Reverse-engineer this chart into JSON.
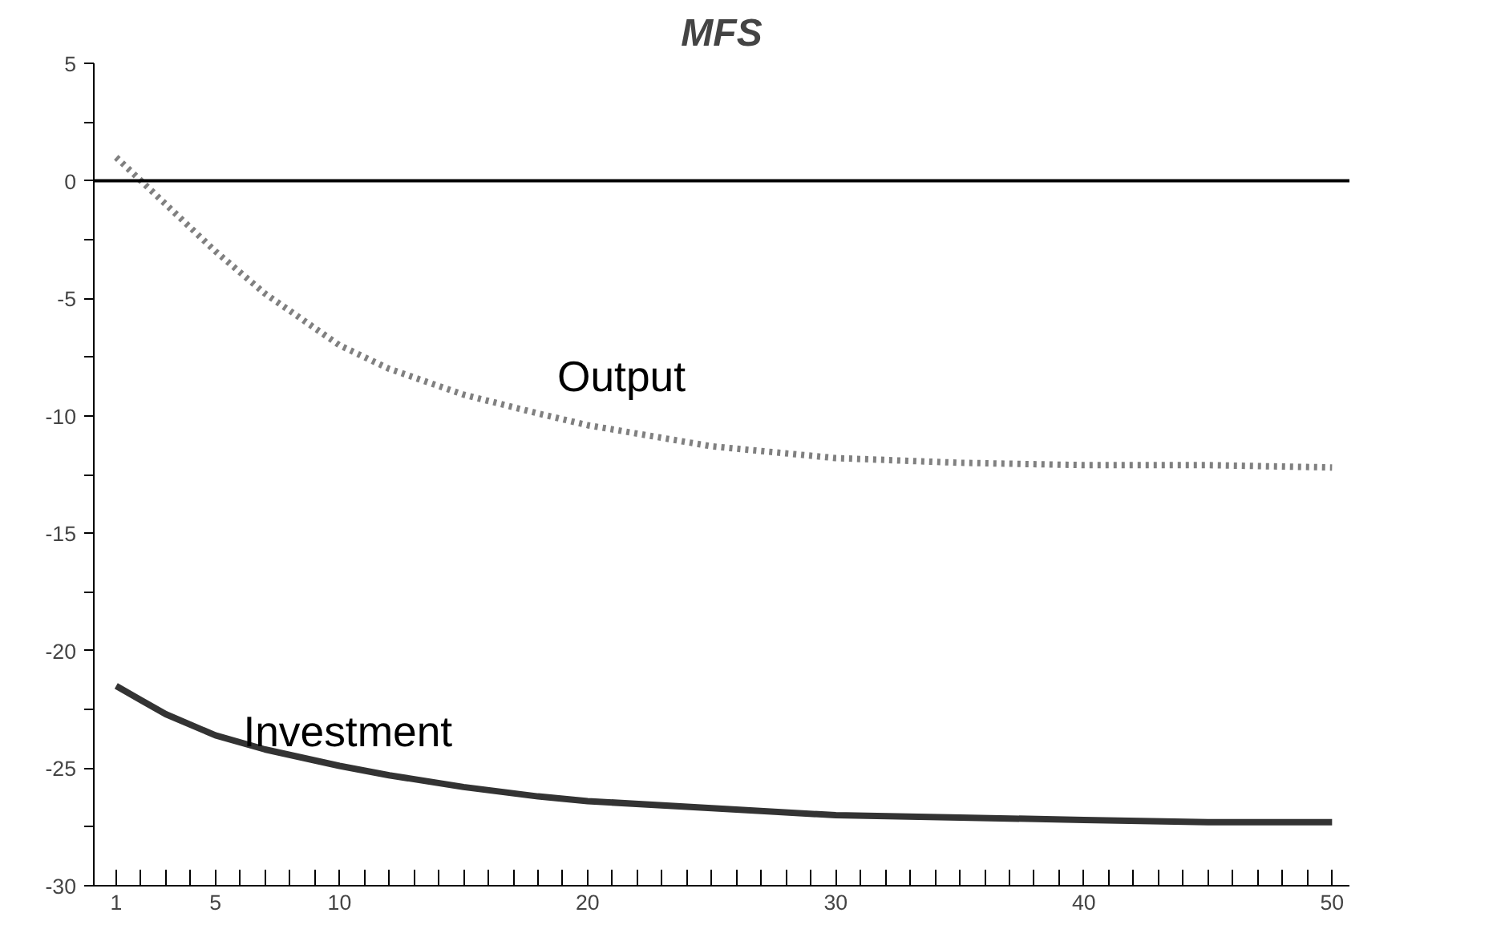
{
  "chart_data": {
    "type": "line",
    "title": "MFS",
    "xlim": [
      0.1,
      50.7
    ],
    "ylim": [
      -30,
      5
    ],
    "xticks": [
      1,
      {
        "value": 2,
        "label": null
      },
      {
        "value": 3,
        "label": null
      },
      {
        "value": 4,
        "label": null
      },
      5,
      {
        "value": 6,
        "label": null
      },
      {
        "value": 7,
        "label": null
      },
      {
        "value": 8,
        "label": null
      },
      {
        "value": 9,
        "label": null
      },
      10,
      {
        "value": 11,
        "label": null
      },
      {
        "value": 12,
        "label": null
      },
      {
        "value": 13,
        "label": null
      },
      {
        "value": 14,
        "label": null
      },
      {
        "value": 15,
        "label": null
      },
      {
        "value": 16,
        "label": null
      },
      {
        "value": 17,
        "label": null
      },
      {
        "value": 18,
        "label": null
      },
      {
        "value": 19,
        "label": null
      },
      20,
      {
        "value": 21,
        "label": null
      },
      {
        "value": 22,
        "label": null
      },
      {
        "value": 23,
        "label": null
      },
      {
        "value": 24,
        "label": null
      },
      {
        "value": 25,
        "label": null
      },
      {
        "value": 26,
        "label": null
      },
      {
        "value": 27,
        "label": null
      },
      {
        "value": 28,
        "label": null
      },
      {
        "value": 29,
        "label": null
      },
      30,
      {
        "value": 31,
        "label": null
      },
      {
        "value": 32,
        "label": null
      },
      {
        "value": 33,
        "label": null
      },
      {
        "value": 34,
        "label": null
      },
      {
        "value": 35,
        "label": null
      },
      {
        "value": 36,
        "label": null
      },
      {
        "value": 37,
        "label": null
      },
      {
        "value": 38,
        "label": null
      },
      {
        "value": 39,
        "label": null
      },
      40,
      {
        "value": 41,
        "label": null
      },
      {
        "value": 42,
        "label": null
      },
      {
        "value": 43,
        "label": null
      },
      {
        "value": 44,
        "label": null
      },
      {
        "value": 45,
        "label": null
      },
      {
        "value": 46,
        "label": null
      },
      {
        "value": 47,
        "label": null
      },
      {
        "value": 48,
        "label": null
      },
      {
        "value": 49,
        "label": null
      },
      50
    ],
    "yticks": [
      -30,
      {
        "value": -27.5,
        "label": null
      },
      -25,
      {
        "value": -22.5,
        "label": null
      },
      -20,
      {
        "value": -17.5,
        "label": null
      },
      -15,
      {
        "value": -12.5,
        "label": null
      },
      -10,
      {
        "value": -7.5,
        "label": null
      },
      -5,
      {
        "value": -2.5,
        "label": null
      },
      0,
      {
        "value": 2.5,
        "label": null
      },
      5
    ],
    "x": [
      1,
      2,
      3,
      5,
      7,
      10,
      12,
      15,
      18,
      20,
      25,
      30,
      35,
      40,
      45,
      50
    ],
    "series": [
      {
        "name": "Output",
        "color": "#808080",
        "line_style": "dotted",
        "values": [
          1.0,
          0.0,
          -1.0,
          -3.0,
          -4.8,
          -7.0,
          -8.0,
          -9.1,
          -9.9,
          -10.4,
          -11.3,
          -11.8,
          -12.0,
          -12.1,
          -12.1,
          -12.2
        ]
      },
      {
        "name": "Investment",
        "color": "#333333",
        "line_style": "solid",
        "values": [
          -21.5,
          -22.1,
          -22.7,
          -23.6,
          -24.2,
          -24.9,
          -25.3,
          -25.8,
          -26.2,
          -26.4,
          -26.7,
          -27.0,
          -27.1,
          -27.2,
          -27.3,
          -27.3
        ]
      }
    ],
    "ref_lines": [
      {
        "axis": "y",
        "value": 0,
        "color": "#000000"
      }
    ]
  }
}
